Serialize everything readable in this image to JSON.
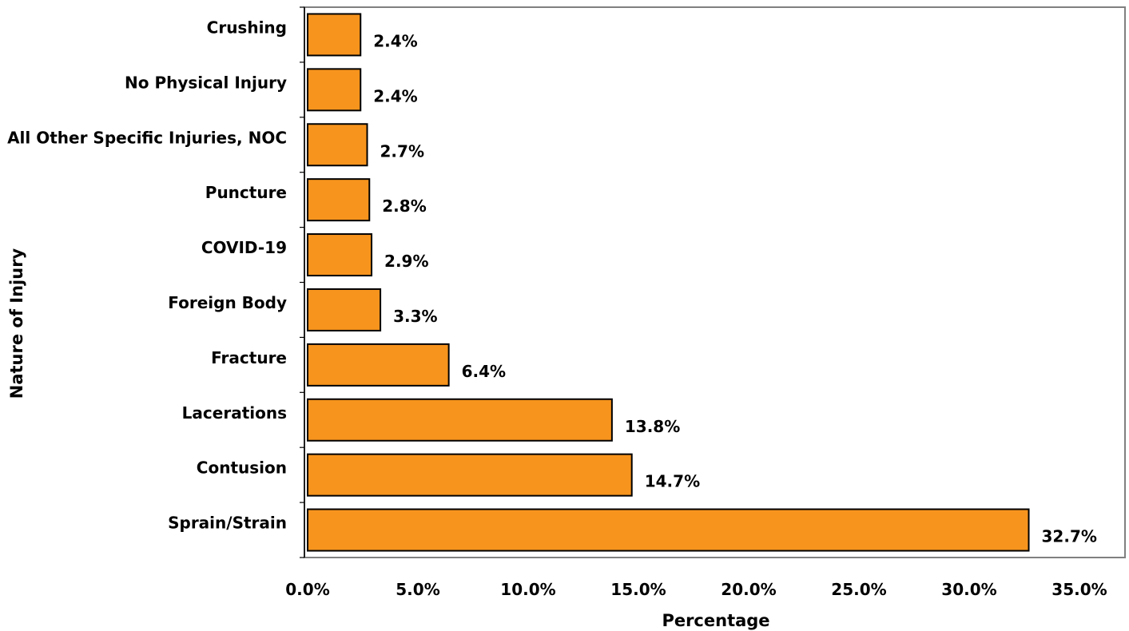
{
  "chart_data": {
    "type": "bar",
    "orientation": "horizontal",
    "categories": [
      "Crushing",
      "No Physical Injury",
      "All Other Specific Injuries, NOC",
      "Puncture",
      "COVID-19",
      "Foreign Body",
      "Fracture",
      "Lacerations",
      "Contusion",
      "Sprain/Strain"
    ],
    "values": [
      2.4,
      2.4,
      2.7,
      2.8,
      2.9,
      3.3,
      6.4,
      13.8,
      14.7,
      32.7
    ],
    "value_labels": [
      "2.4%",
      "2.4%",
      "2.7%",
      "2.8%",
      "2.9%",
      "3.3%",
      "6.4%",
      "13.8%",
      "14.7%",
      "32.7%"
    ],
    "xlabel": "Percentage",
    "ylabel": "Nature of Injury",
    "xlim": [
      0,
      35
    ],
    "x_ticks": [
      0,
      5,
      10,
      15,
      20,
      25,
      30,
      35
    ],
    "x_tick_labels": [
      "0.0%",
      "5.0%",
      "10.0%",
      "15.0%",
      "20.0%",
      "25.0%",
      "30.0%",
      "35.0%"
    ],
    "grid": false,
    "bar_color": "#F7941D",
    "bar_edge_color": "#000000",
    "frame_color": "#808080"
  }
}
